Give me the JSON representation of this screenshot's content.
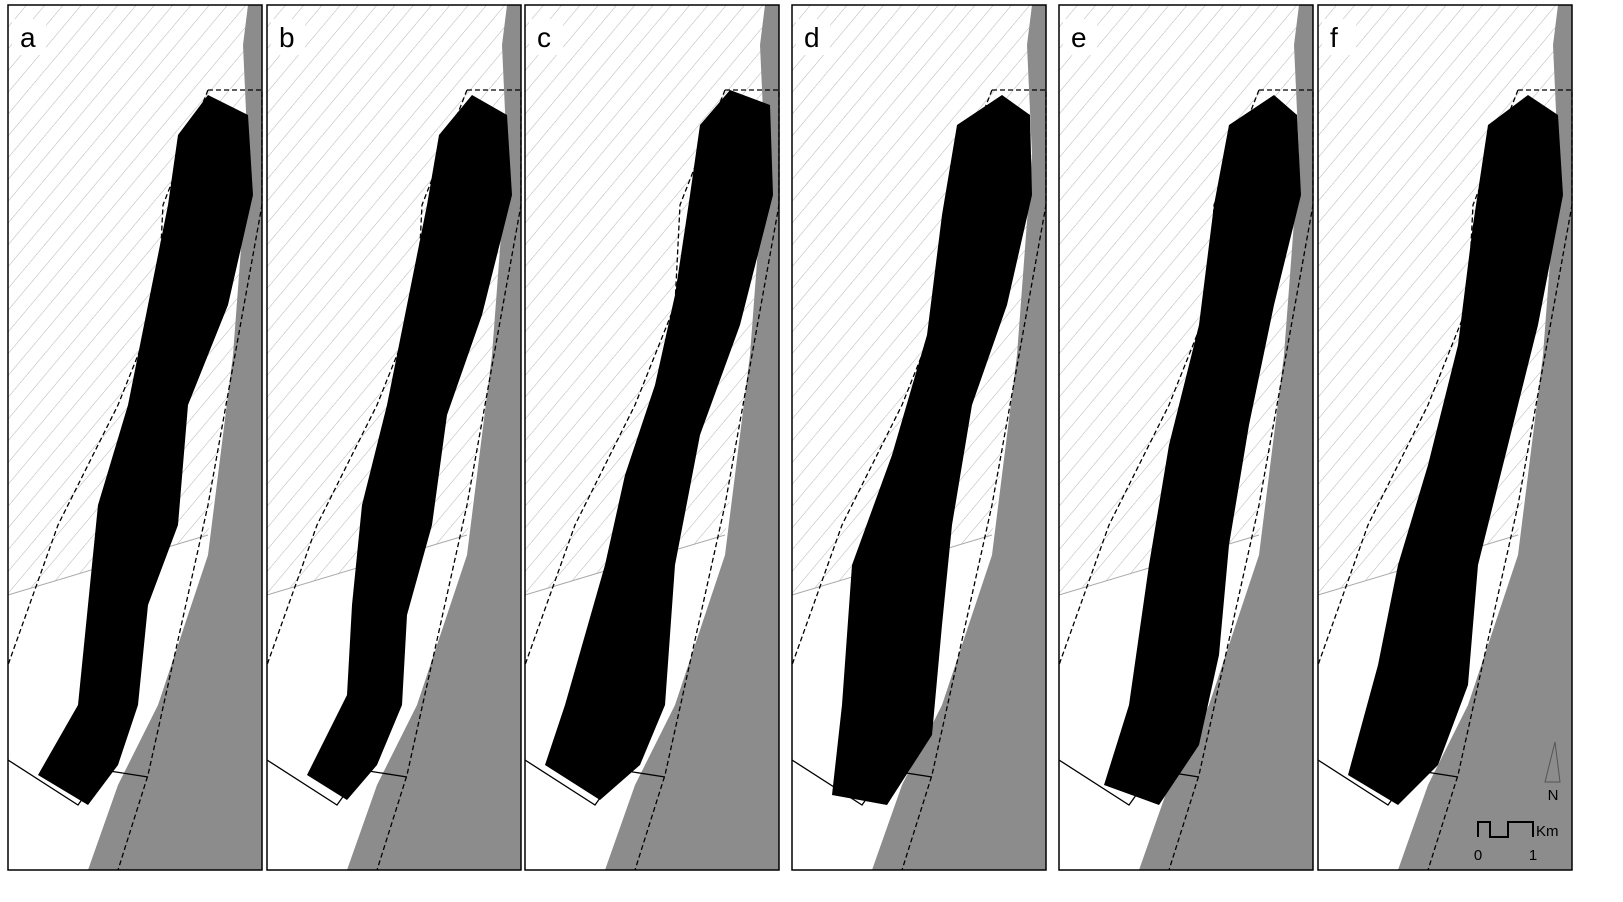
{
  "panels": [
    {
      "label": "a"
    },
    {
      "label": "b"
    },
    {
      "label": "c"
    },
    {
      "label": "d"
    },
    {
      "label": "e"
    },
    {
      "label": "f"
    }
  ],
  "north_arrow": {
    "label": "N"
  },
  "scale_bar": {
    "unit": "Km",
    "ticks": [
      "0",
      "1"
    ]
  }
}
